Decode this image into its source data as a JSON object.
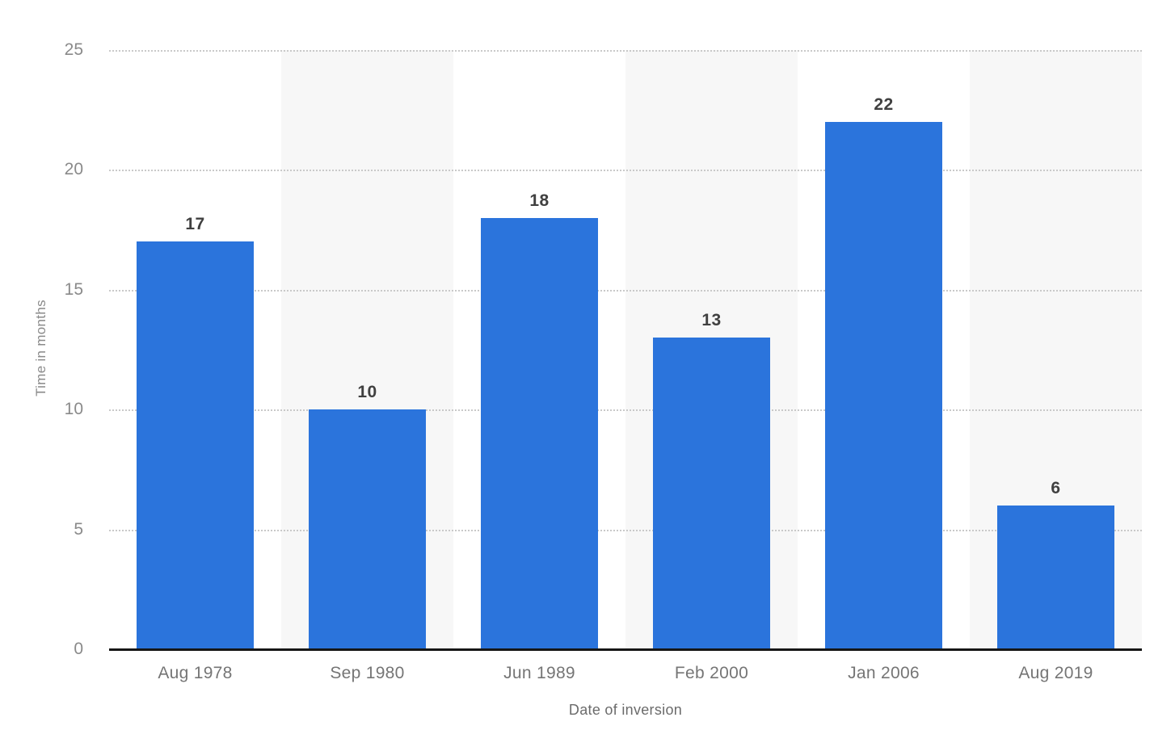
{
  "chart_data": {
    "type": "bar",
    "title": "",
    "categories": [
      "Aug 1978",
      "Sep 1980",
      "Jun 1989",
      "Feb 2000",
      "Jan 2006",
      "Aug 2019"
    ],
    "values": [
      17,
      10,
      18,
      13,
      22,
      6
    ],
    "xlabel": "Date of inversion",
    "ylabel": "Time in months",
    "ylim": [
      0,
      25
    ],
    "yticks": [
      0,
      5,
      10,
      15,
      20,
      25
    ],
    "grid": "horizontal-dotted",
    "legend_position": "none",
    "plot_bands": "alternating vertical columns, even columns white, odd columns light gray",
    "colors": {
      "bar": "#2b74dc",
      "band_alt": "#f7f7f7",
      "gridline": "#c9c9c9",
      "axis_line": "#161616",
      "tick_label": "#8a8a8a",
      "category_label": "#757575",
      "axis_title": "#6b6b6b",
      "data_label": "#404040",
      "background": "#ffffff"
    }
  }
}
